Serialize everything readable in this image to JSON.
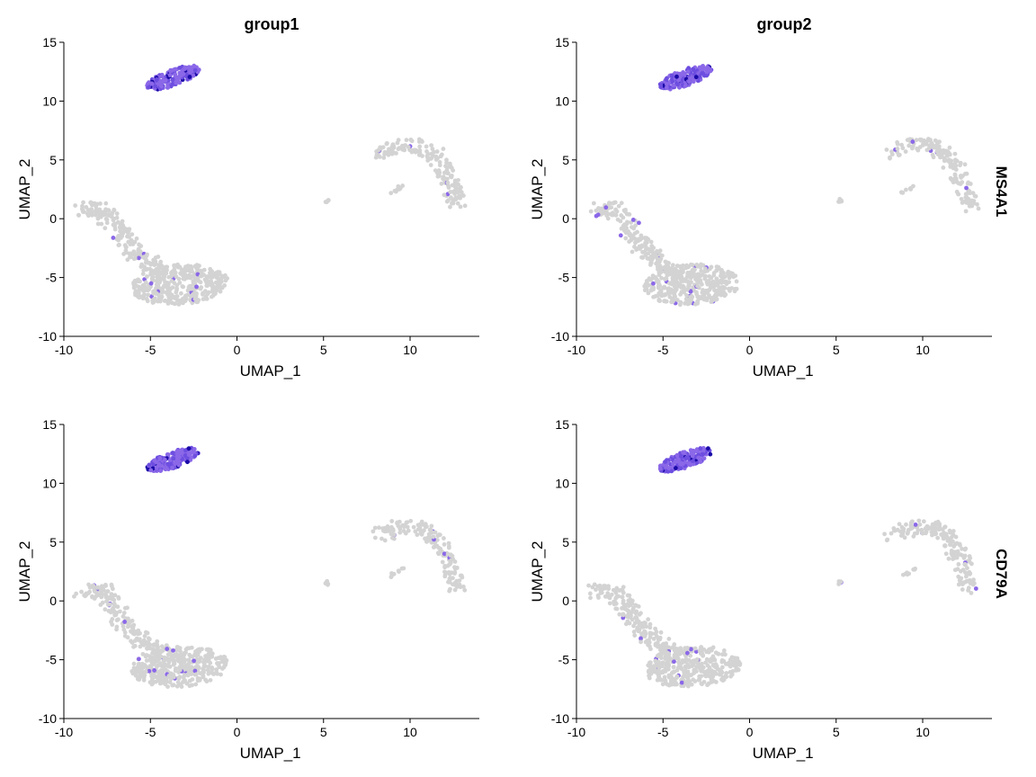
{
  "chart_data": {
    "type": "scatter",
    "columns": [
      "group1",
      "group2"
    ],
    "rows": [
      "MS4A1",
      "CD79A"
    ],
    "xlabel": "UMAP_1",
    "ylabel": "UMAP_2",
    "xlim": [
      -10,
      14
    ],
    "ylim": [
      -10,
      15
    ],
    "xticks": [
      -10,
      -5,
      0,
      5,
      10
    ],
    "yticks": [
      -10,
      -5,
      0,
      5,
      10,
      15
    ],
    "colors": {
      "low": "#d3d3d3",
      "mid": "#8b68e8",
      "high": "#1a0aa8"
    },
    "clusters": [
      {
        "id": "b-cells",
        "shape": "ellipse",
        "cx": -3.7,
        "cy": 12.0,
        "rx": 1.7,
        "ry": 0.65,
        "angle": 30,
        "n": 170,
        "expression": "high"
      },
      {
        "id": "myeloid-arc",
        "shape": "arc",
        "n": 170,
        "expression": "low",
        "path": [
          [
            8.2,
            5.6
          ],
          [
            9.5,
            6.3
          ],
          [
            10.6,
            6.2
          ],
          [
            11.5,
            5.3
          ],
          [
            12.1,
            3.9
          ],
          [
            12.5,
            2.3
          ],
          [
            12.7,
            1.1
          ]
        ],
        "spread": 0.55
      },
      {
        "id": "myeloid-strand",
        "shape": "line",
        "n": 9,
        "expression": "low",
        "from": [
          8.8,
          2.1
        ],
        "to": [
          9.6,
          2.8
        ],
        "spread": 0.12
      },
      {
        "id": "platelet",
        "shape": "ellipse",
        "cx": 5.2,
        "cy": 1.5,
        "rx": 0.12,
        "ry": 0.18,
        "angle": 0,
        "n": 5,
        "expression": "low"
      },
      {
        "id": "t-arm",
        "shape": "arc",
        "n": 190,
        "expression": "low",
        "path": [
          [
            -8.9,
            0.8
          ],
          [
            -7.8,
            0.8
          ],
          [
            -7.0,
            -0.8
          ],
          [
            -6.3,
            -2.2
          ],
          [
            -5.5,
            -3.4
          ],
          [
            -4.5,
            -4.5
          ]
        ],
        "spread": 0.6
      },
      {
        "id": "t-body",
        "shape": "ellipse",
        "cx": -3.3,
        "cy": -5.6,
        "rx": 2.8,
        "ry": 1.7,
        "angle": 8,
        "n": 380,
        "expression": "low"
      }
    ]
  }
}
